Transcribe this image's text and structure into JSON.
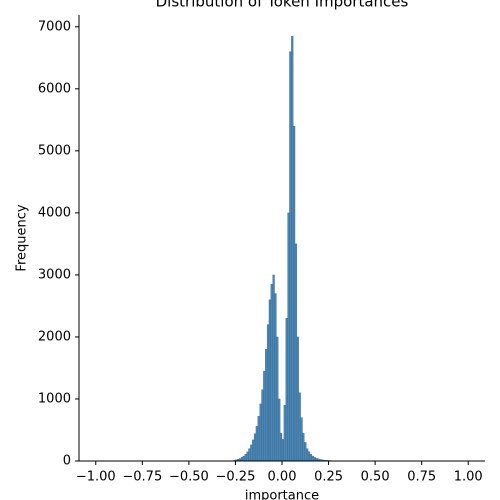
{
  "chart_data": {
    "type": "histogram",
    "title": "Distribution of Token Importances",
    "xlabel": "importance",
    "ylabel": "Frequency",
    "color": "#4a86b4",
    "bins": [
      -0.26,
      -0.25,
      -0.24,
      -0.23,
      -0.22,
      -0.21,
      -0.2,
      -0.19,
      -0.18,
      -0.17,
      -0.16,
      -0.15,
      -0.14,
      -0.13,
      -0.12,
      -0.11,
      -0.1,
      -0.09,
      -0.08,
      -0.07,
      -0.06,
      -0.05,
      -0.04,
      -0.03,
      -0.02,
      -0.01,
      0,
      0.01,
      0.02,
      0.03,
      0.04,
      0.05,
      0.06,
      0.07,
      0.08,
      0.09,
      0.1,
      0.11,
      0.12,
      0.13,
      0.14,
      0.15,
      0.16,
      0.17,
      0.18,
      0.19,
      0.2,
      0.21,
      0.22,
      0.23,
      0.24,
      0.25,
      0.26,
      0.27,
      0.28,
      0.29,
      0.3,
      0.31,
      0.32,
      0.33,
      0.34
    ],
    "values": [
      10,
      20,
      30,
      40,
      60,
      80,
      110,
      150,
      200,
      260,
      340,
      440,
      560,
      720,
      920,
      1150,
      1450,
      1800,
      2200,
      2600,
      2850,
      3000,
      2700,
      2000,
      1000,
      450,
      350,
      900,
      2300,
      4000,
      6600,
      6850,
      5400,
      3500,
      2000,
      1100,
      700,
      450,
      300,
      200,
      150,
      110,
      80,
      60,
      45,
      35,
      25,
      20,
      15,
      12,
      10,
      8,
      6,
      5,
      4,
      3,
      3,
      2,
      2,
      1
    ],
    "xlim": [
      -1.09,
      1.09
    ],
    "xticks": [
      {
        "value": -1,
        "label": "−1.00"
      },
      {
        "value": -0.75,
        "label": "−0.75"
      },
      {
        "value": -0.5,
        "label": "−0.50"
      },
      {
        "value": -0.25,
        "label": "−0.25"
      },
      {
        "value": 0,
        "label": "0.00"
      },
      0.25,
      {
        "value": 0.5,
        "label": "0.50"
      },
      0.75,
      {
        "value": 1,
        "label": "1.00"
      }
    ],
    "ylim": [
      0,
      7190
    ],
    "yticks": [
      0,
      1000,
      2000,
      3000,
      4000,
      5000,
      6000,
      7000
    ]
  }
}
